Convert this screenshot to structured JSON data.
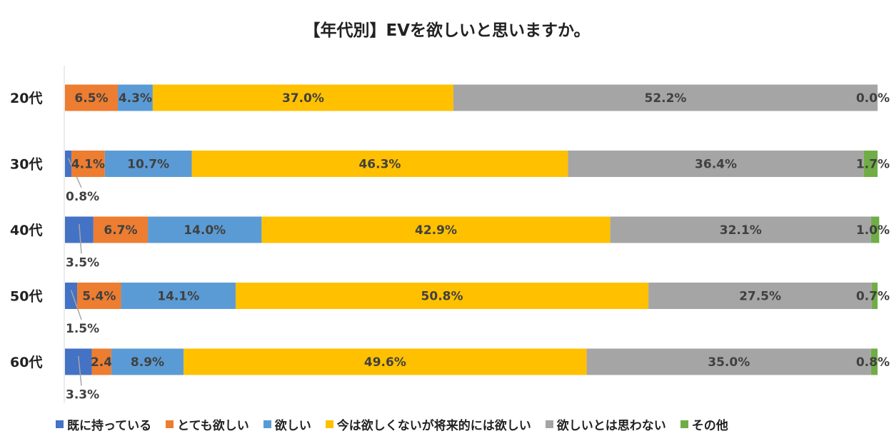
{
  "chart_data": {
    "type": "bar",
    "orientation": "horizontal",
    "stacked": true,
    "title": "【年代別】EVを欲しいと思いますか。",
    "categories": [
      "20代",
      "30代",
      "40代",
      "50代",
      "60代"
    ],
    "series": [
      {
        "name": "既に持っている",
        "color": "#4472C4",
        "values": [
          0.0,
          0.8,
          3.5,
          1.5,
          3.3
        ],
        "labels": [
          "",
          "0.8%",
          "3.5%",
          "1.5%",
          "3.3%"
        ]
      },
      {
        "name": "とても欲しい",
        "color": "#ED7D31",
        "values": [
          6.5,
          4.1,
          6.7,
          5.4,
          2.4
        ],
        "labels": [
          "6.5%",
          "4.1%",
          "6.7%",
          "5.4%",
          "2.4%"
        ]
      },
      {
        "name": "欲しい",
        "color": "#5B9BD5",
        "values": [
          4.3,
          10.7,
          14.0,
          14.1,
          8.9
        ],
        "labels": [
          "4.3%",
          "10.7%",
          "14.0%",
          "14.1%",
          "8.9%"
        ]
      },
      {
        "name": "今は欲しくないが将来的には欲しい",
        "color": "#FFC000",
        "values": [
          37.0,
          46.3,
          42.9,
          50.8,
          49.6
        ],
        "labels": [
          "37.0%",
          "46.3%",
          "42.9%",
          "50.8%",
          "49.6%"
        ]
      },
      {
        "name": "欲しいとは思わない",
        "color": "#A5A5A5",
        "values": [
          52.2,
          36.4,
          32.1,
          27.5,
          35.0
        ],
        "labels": [
          "52.2%",
          "36.4%",
          "32.1%",
          "27.5%",
          "35.0%"
        ]
      },
      {
        "name": "その他",
        "color": "#70AD47",
        "values": [
          0.0,
          1.7,
          1.0,
          0.7,
          0.8
        ],
        "labels": [
          "0.0%",
          "1.7%",
          "1.0%",
          "0.7%",
          "0.8%"
        ]
      }
    ],
    "xlim": [
      0,
      100
    ],
    "legend": "bottom",
    "grid": false
  }
}
